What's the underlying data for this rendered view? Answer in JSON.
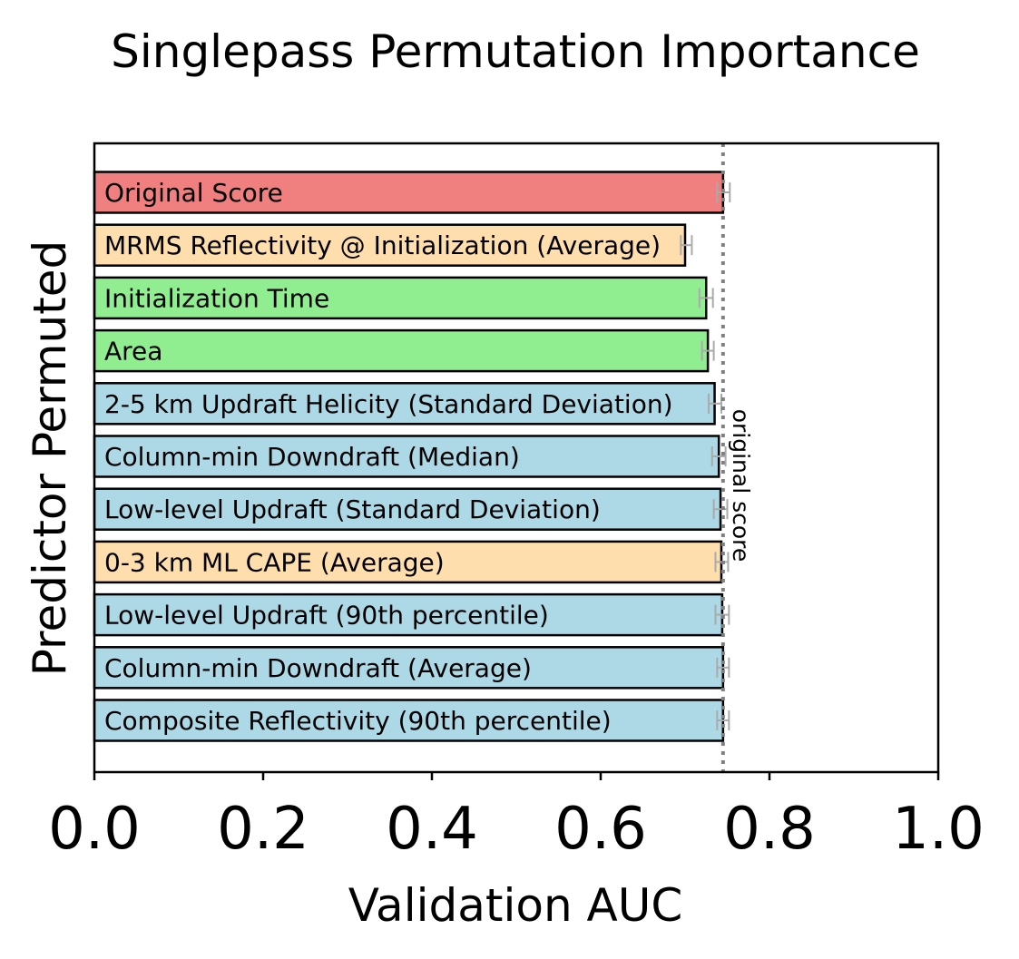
{
  "chart_data": {
    "type": "bar",
    "orientation": "horizontal",
    "title": "Singlepass Permutation Importance",
    "xlabel": "Validation AUC",
    "ylabel": "Predictor Permuted",
    "xlim": [
      0.0,
      1.0
    ],
    "xticks": [
      "0.0",
      "0.2",
      "0.4",
      "0.6",
      "0.8",
      "1.0"
    ],
    "xtick_values": [
      0.0,
      0.2,
      0.4,
      0.6,
      0.8,
      1.0
    ],
    "grid": false,
    "reference_line": {
      "value": 0.745,
      "label": "original score"
    },
    "colors": {
      "original": "#f08080",
      "orange": "#ffdead",
      "green": "#90ee90",
      "blue": "#add8e6",
      "error_bar": "#aaaaaa",
      "reference_line": "#808080"
    },
    "categories": [
      "Original Score",
      "MRMS Reflectivity @ Initialization (Average)",
      "Initialization Time",
      "Area",
      "2-5 km Updraft Helicity (Standard Deviation)",
      "Column-min Downdraft (Median)",
      "Low-level Updraft (Standard Deviation)",
      "0-3 km ML CAPE (Average)",
      "Low-level Updraft (90th percentile)",
      "Column-min Downdraft (Average)",
      "Composite Reflectivity (90th percentile)"
    ],
    "values": [
      0.745,
      0.7,
      0.725,
      0.727,
      0.735,
      0.74,
      0.742,
      0.743,
      0.744,
      0.745,
      0.745
    ],
    "error_low": [
      0.738,
      0.695,
      0.717,
      0.72,
      0.728,
      0.732,
      0.734,
      0.736,
      0.736,
      0.738,
      0.738
    ],
    "error_high": [
      0.753,
      0.708,
      0.733,
      0.734,
      0.743,
      0.748,
      0.75,
      0.751,
      0.752,
      0.752,
      0.752
    ],
    "bar_colors": [
      "original",
      "orange",
      "green",
      "green",
      "blue",
      "blue",
      "blue",
      "orange",
      "blue",
      "blue",
      "blue"
    ]
  }
}
